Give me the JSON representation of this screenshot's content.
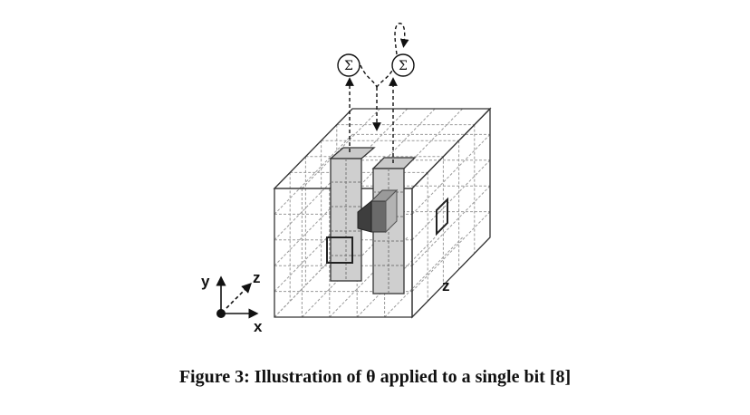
{
  "diagram": {
    "axis_labels": {
      "y": "y",
      "z_near_origin": "z",
      "x": "x",
      "z_depth": "z"
    },
    "sum_symbol": "Σ"
  },
  "caption": {
    "prefix": "Figure 3:",
    "text": "Illustration of θ applied to a single bit [8]"
  }
}
